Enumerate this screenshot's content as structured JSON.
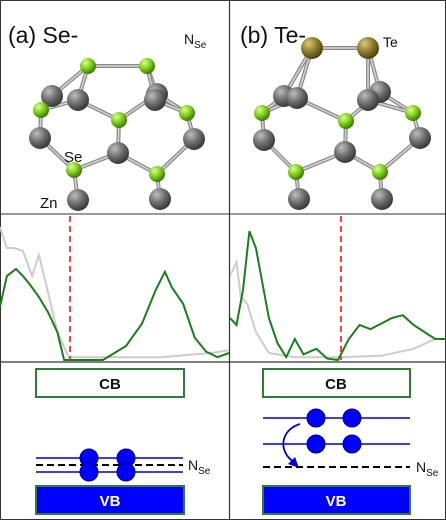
{
  "panels": [
    {
      "title": "(a) Se-",
      "top_right_main": "N",
      "top_right_sub": "Se",
      "atom_labels": {
        "se": "Se",
        "zn": "Zn"
      },
      "dos_curve": "0.00,0.62 0.03,0.40 0.07,0.35 0.10,0.40 0.13,0.46 0.17,0.55 0.21,0.66 0.25,0.80 0.28,1.00 0.45,1.00 0.55,0.90 0.62,0.74 0.68,0.50 0.72,0.37 0.75,0.48 0.80,0.60 0.85,0.84 0.90,0.94 0.95,0.98 1.00,0.95",
      "dos_grey": "0.00,0.05 0.03,0.20 0.06,0.20 0.10,0.22 0.14,0.40 0.17,0.25 0.20,0.45 0.25,0.80 0.30,0.98 0.50,0.98 0.70,0.98 0.85,0.96 0.92,0.95 1.00,0.93",
      "cb_label": "CB",
      "vb_label": "VB",
      "level_label_main": "N",
      "level_label_sub": "Se"
    },
    {
      "title": "(b) Te-",
      "top_right_main": "Te",
      "top_right_sub": "",
      "dos_curve": "0.00,0.70 0.03,0.75 0.06,0.50 0.09,0.08 0.12,0.20 0.15,0.45 0.18,0.70 0.22,0.88 0.26,0.98 0.30,0.85 0.34,0.96 0.40,0.92 0.45,0.99 0.50,1.00 0.55,0.85 0.60,0.75 0.65,0.78 0.70,0.74 0.75,0.70 0.80,0.68 0.85,0.75 0.90,0.80 0.95,0.85 1.00,0.85",
      "dos_grey": "0.00,0.40 0.03,0.30 0.05,0.55 0.08,0.60 0.12,0.80 0.18,0.95 0.30,0.98 0.50,0.98 0.70,0.97 0.85,0.92 0.95,0.85 1.00,0.85",
      "cb_label": "CB",
      "vb_label": "VB",
      "level_label_main": "N",
      "level_label_sub": "Se"
    }
  ],
  "colors": {
    "divider": "#333333",
    "fermi_line": "#ff2a2a",
    "dos_green": "#1a7f1a",
    "dos_grey": "#cccccc",
    "band_border": "#2e7d32",
    "vb_fill": "#0000ff",
    "electron": "#0000ff",
    "level_line": "#0000cc",
    "se_atom": "#7ccd1a",
    "zn_atom": "#6d6d6d",
    "te_atom": "#8a7b2a"
  }
}
